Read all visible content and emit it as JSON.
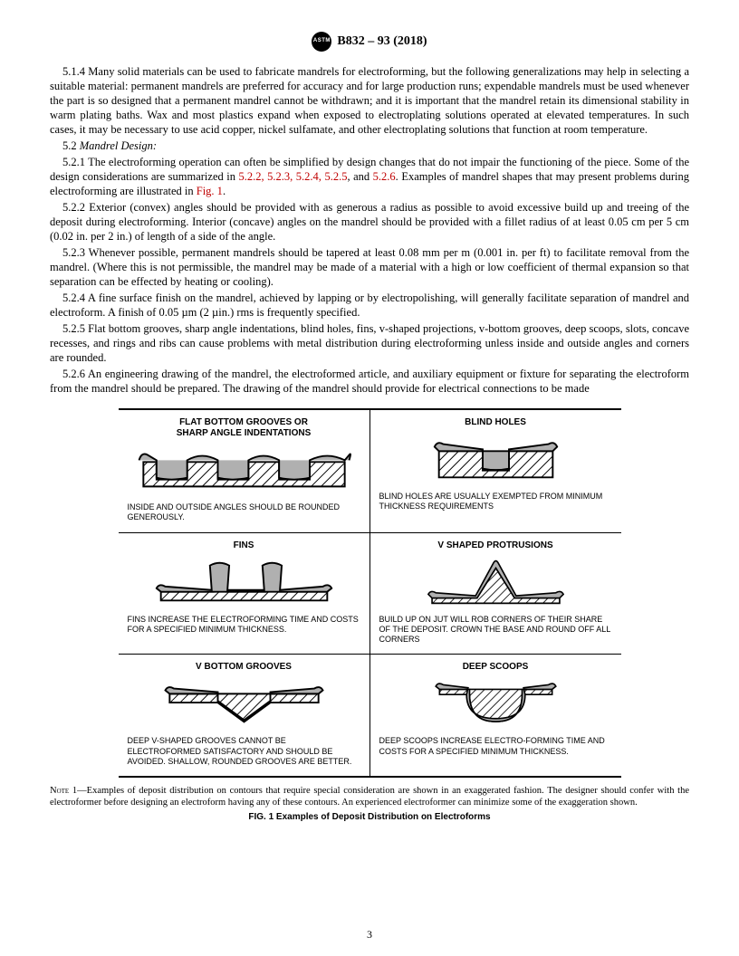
{
  "header": {
    "logo_text": "ASTM",
    "standard": "B832 – 93 (2018)"
  },
  "paragraphs": {
    "p514": "5.1.4 Many solid materials can be used to fabricate mandrels for electroforming, but the following generalizations may help in selecting a suitable material: permanent mandrels are preferred for accuracy and for large production runs; expendable mandrels must be used whenever the part is so designed that a permanent mandrel cannot be withdrawn; and it is important that the mandrel retain its dimensional stability in warm plating baths. Wax and most plastics expand when exposed to electroplating solutions operated at elevated temperatures. In such cases, it may be necessary to use acid copper, nickel sulfamate, and other electroplating solutions that function at room temperature.",
    "p52head_num": "5.2 ",
    "p52head_title": "Mandrel Design:",
    "p521_a": "5.2.1 The electroforming operation can often be simplified by design changes that do not impair the functioning of the piece. Some of the design considerations are summarized in ",
    "p521_refs": "5.2.2, 5.2.3, 5.2.4, 5.2.5",
    "p521_and": ", and ",
    "p521_ref6": "5.2.6",
    "p521_mid": ". Examples of mandrel shapes that may present problems during electroforming are illustrated in ",
    "p521_fig": "Fig. 1",
    "p521_end": ".",
    "p522": "5.2.2 Exterior (convex) angles should be provided with as generous a radius as possible to avoid excessive build up and treeing of the deposit during electroforming. Interior (concave) angles on the mandrel should be provided with a fillet radius of at least 0.05 cm per 5 cm (0.02 in. per 2 in.) of length of a side of the angle.",
    "p523": "5.2.3 Whenever possible, permanent mandrels should be tapered at least 0.08 mm per m (0.001 in. per ft) to facilitate removal from the mandrel. (Where this is not permissible, the mandrel may be made of a material with a high or low coefficient of thermal expansion so that separation can be effected by heating or cooling).",
    "p524": "5.2.4 A fine surface finish on the mandrel, achieved by lapping or by electropolishing, will generally facilitate separation of mandrel and electroform. A finish of 0.05 µm (2 µin.) rms is frequently specified.",
    "p525": "5.2.5 Flat bottom grooves, sharp angle indentations, blind holes, fins, v-shaped projections, v-bottom grooves, deep scoops, slots, concave recesses, and rings and ribs can cause problems with metal distribution during electroforming unless inside and outside angles and corners are rounded.",
    "p526": "5.2.6 An engineering drawing of the mandrel, the electroformed article, and auxiliary equipment or fixture for separating the electroform from the mandrel should be prepared. The drawing of the mandrel should provide for electrical connections to be made"
  },
  "figure": {
    "cells": {
      "r1c1_title": "FLAT BOTTOM GROOVES OR\nSHARP ANGLE INDENTATIONS",
      "r1c1_note": "INSIDE AND OUTSIDE ANGLES SHOULD BE ROUNDED GENEROUSLY.",
      "r1c2_title": "BLIND HOLES",
      "r1c2_note": "BLIND HOLES ARE USUALLY EXEMPTED FROM MINIMUM THICKNESS REQUIREMENTS",
      "r2c1_title": "FINS",
      "r2c1_note": "FINS INCREASE THE ELECTROFORMING TIME AND COSTS FOR A SPECIFIED MINIMUM THICKNESS.",
      "r2c2_title": "V SHAPED PROTRUSIONS",
      "r2c2_note": "BUILD UP ON JUT WILL ROB CORNERS OF THEIR SHARE OF THE DEPOSIT. CROWN THE BASE AND ROUND OFF ALL CORNERS",
      "r3c1_title": "V BOTTOM GROOVES",
      "r3c1_note": "DEEP V-SHAPED GROOVES CANNOT BE ELECTROFORMED SATISFACTORY AND SHOULD BE AVOIDED. SHALLOW, ROUNDED GROOVES ARE BETTER.",
      "r3c2_title": "DEEP SCOOPS",
      "r3c2_note": "DEEP SCOOPS INCREASE ELECTRO-FORMING TIME AND COSTS FOR A SPECIFIED MINIMUM THICKNESS."
    },
    "note_label": "Note 1—",
    "note_text": "Examples of deposit distribution on contours that require special consideration are shown in an exaggerated fashion. The designer should confer with the electroformer before designing an electroform having any of these contours. An experienced electroformer can minimize some of the exaggeration shown.",
    "caption": "FIG. 1  Examples of Deposit Distribution on Electroforms"
  },
  "page_number": "3",
  "colors": {
    "text": "#000000",
    "link": "#c00000",
    "deposit_fill": "#b0b0b0",
    "hatch_stroke": "#000000"
  }
}
